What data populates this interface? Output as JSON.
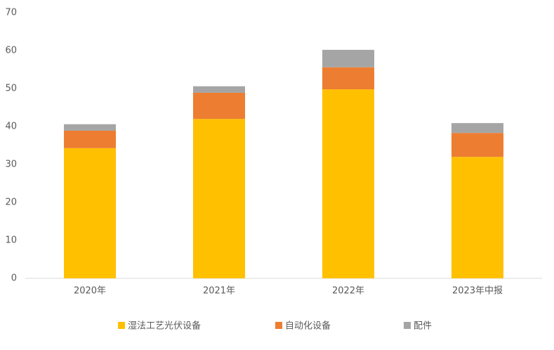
{
  "chart_data": {
    "type": "stacked_bar",
    "categories": [
      "2020年",
      "2021年",
      "2022年",
      "2023年中报"
    ],
    "series": [
      {
        "name": "湿法工艺光伏设备",
        "color": "#ffc000",
        "values": [
          34.3,
          42.0,
          49.8,
          32.0
        ]
      },
      {
        "name": "自动化设备",
        "color": "#ed7d31",
        "values": [
          4.6,
          6.9,
          5.8,
          6.3
        ]
      },
      {
        "name": "配件",
        "color": "#a5a5a5",
        "values": [
          1.7,
          1.7,
          4.6,
          2.6
        ]
      }
    ],
    "ylim": [
      0,
      70
    ],
    "yticks": [
      0,
      10,
      20,
      30,
      40,
      50,
      60,
      70
    ],
    "grid": false,
    "legend": "bottom"
  }
}
